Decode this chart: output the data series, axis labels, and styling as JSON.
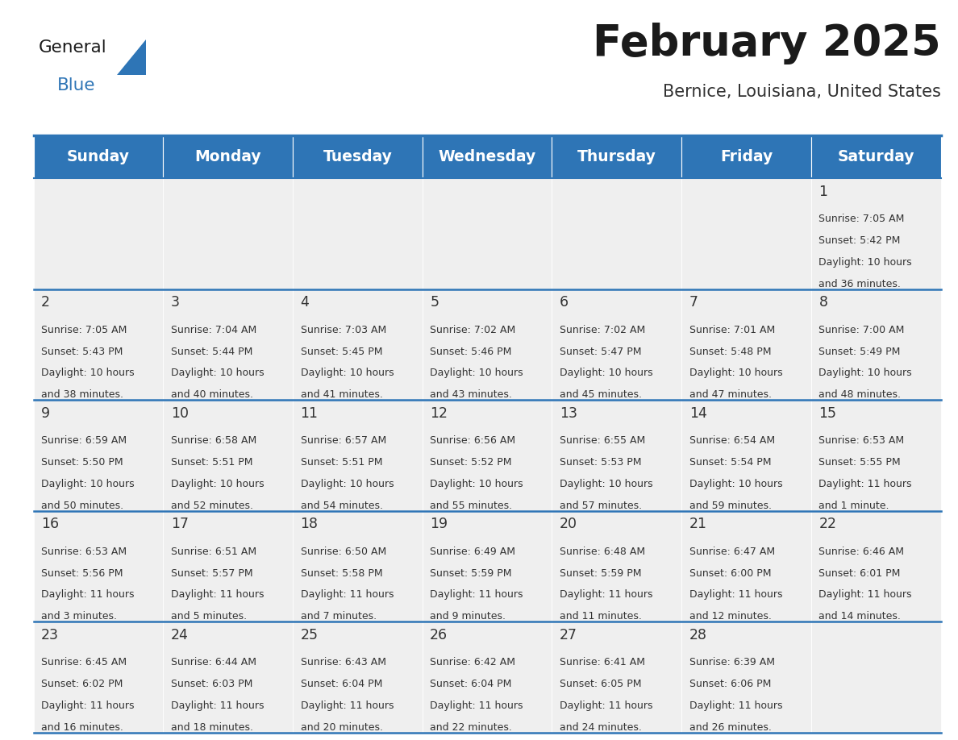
{
  "title": "February 2025",
  "subtitle": "Bernice, Louisiana, United States",
  "days_of_week": [
    "Sunday",
    "Monday",
    "Tuesday",
    "Wednesday",
    "Thursday",
    "Friday",
    "Saturday"
  ],
  "header_bg": "#2E75B6",
  "header_text": "#FFFFFF",
  "cell_bg_light": "#EFEFEF",
  "divider_color": "#2E75B6",
  "text_color": "#333333",
  "day_num_color": "#333333",
  "calendar": [
    [
      null,
      null,
      null,
      null,
      null,
      null,
      {
        "day": 1,
        "sunrise": "7:05 AM",
        "sunset": "5:42 PM",
        "daylight_line1": "Daylight: 10 hours",
        "daylight_line2": "and 36 minutes."
      }
    ],
    [
      {
        "day": 2,
        "sunrise": "7:05 AM",
        "sunset": "5:43 PM",
        "daylight_line1": "Daylight: 10 hours",
        "daylight_line2": "and 38 minutes."
      },
      {
        "day": 3,
        "sunrise": "7:04 AM",
        "sunset": "5:44 PM",
        "daylight_line1": "Daylight: 10 hours",
        "daylight_line2": "and 40 minutes."
      },
      {
        "day": 4,
        "sunrise": "7:03 AM",
        "sunset": "5:45 PM",
        "daylight_line1": "Daylight: 10 hours",
        "daylight_line2": "and 41 minutes."
      },
      {
        "day": 5,
        "sunrise": "7:02 AM",
        "sunset": "5:46 PM",
        "daylight_line1": "Daylight: 10 hours",
        "daylight_line2": "and 43 minutes."
      },
      {
        "day": 6,
        "sunrise": "7:02 AM",
        "sunset": "5:47 PM",
        "daylight_line1": "Daylight: 10 hours",
        "daylight_line2": "and 45 minutes."
      },
      {
        "day": 7,
        "sunrise": "7:01 AM",
        "sunset": "5:48 PM",
        "daylight_line1": "Daylight: 10 hours",
        "daylight_line2": "and 47 minutes."
      },
      {
        "day": 8,
        "sunrise": "7:00 AM",
        "sunset": "5:49 PM",
        "daylight_line1": "Daylight: 10 hours",
        "daylight_line2": "and 48 minutes."
      }
    ],
    [
      {
        "day": 9,
        "sunrise": "6:59 AM",
        "sunset": "5:50 PM",
        "daylight_line1": "Daylight: 10 hours",
        "daylight_line2": "and 50 minutes."
      },
      {
        "day": 10,
        "sunrise": "6:58 AM",
        "sunset": "5:51 PM",
        "daylight_line1": "Daylight: 10 hours",
        "daylight_line2": "and 52 minutes."
      },
      {
        "day": 11,
        "sunrise": "6:57 AM",
        "sunset": "5:51 PM",
        "daylight_line1": "Daylight: 10 hours",
        "daylight_line2": "and 54 minutes."
      },
      {
        "day": 12,
        "sunrise": "6:56 AM",
        "sunset": "5:52 PM",
        "daylight_line1": "Daylight: 10 hours",
        "daylight_line2": "and 55 minutes."
      },
      {
        "day": 13,
        "sunrise": "6:55 AM",
        "sunset": "5:53 PM",
        "daylight_line1": "Daylight: 10 hours",
        "daylight_line2": "and 57 minutes."
      },
      {
        "day": 14,
        "sunrise": "6:54 AM",
        "sunset": "5:54 PM",
        "daylight_line1": "Daylight: 10 hours",
        "daylight_line2": "and 59 minutes."
      },
      {
        "day": 15,
        "sunrise": "6:53 AM",
        "sunset": "5:55 PM",
        "daylight_line1": "Daylight: 11 hours",
        "daylight_line2": "and 1 minute."
      }
    ],
    [
      {
        "day": 16,
        "sunrise": "6:53 AM",
        "sunset": "5:56 PM",
        "daylight_line1": "Daylight: 11 hours",
        "daylight_line2": "and 3 minutes."
      },
      {
        "day": 17,
        "sunrise": "6:51 AM",
        "sunset": "5:57 PM",
        "daylight_line1": "Daylight: 11 hours",
        "daylight_line2": "and 5 minutes."
      },
      {
        "day": 18,
        "sunrise": "6:50 AM",
        "sunset": "5:58 PM",
        "daylight_line1": "Daylight: 11 hours",
        "daylight_line2": "and 7 minutes."
      },
      {
        "day": 19,
        "sunrise": "6:49 AM",
        "sunset": "5:59 PM",
        "daylight_line1": "Daylight: 11 hours",
        "daylight_line2": "and 9 minutes."
      },
      {
        "day": 20,
        "sunrise": "6:48 AM",
        "sunset": "5:59 PM",
        "daylight_line1": "Daylight: 11 hours",
        "daylight_line2": "and 11 minutes."
      },
      {
        "day": 21,
        "sunrise": "6:47 AM",
        "sunset": "6:00 PM",
        "daylight_line1": "Daylight: 11 hours",
        "daylight_line2": "and 12 minutes."
      },
      {
        "day": 22,
        "sunrise": "6:46 AM",
        "sunset": "6:01 PM",
        "daylight_line1": "Daylight: 11 hours",
        "daylight_line2": "and 14 minutes."
      }
    ],
    [
      {
        "day": 23,
        "sunrise": "6:45 AM",
        "sunset": "6:02 PM",
        "daylight_line1": "Daylight: 11 hours",
        "daylight_line2": "and 16 minutes."
      },
      {
        "day": 24,
        "sunrise": "6:44 AM",
        "sunset": "6:03 PM",
        "daylight_line1": "Daylight: 11 hours",
        "daylight_line2": "and 18 minutes."
      },
      {
        "day": 25,
        "sunrise": "6:43 AM",
        "sunset": "6:04 PM",
        "daylight_line1": "Daylight: 11 hours",
        "daylight_line2": "and 20 minutes."
      },
      {
        "day": 26,
        "sunrise": "6:42 AM",
        "sunset": "6:04 PM",
        "daylight_line1": "Daylight: 11 hours",
        "daylight_line2": "and 22 minutes."
      },
      {
        "day": 27,
        "sunrise": "6:41 AM",
        "sunset": "6:05 PM",
        "daylight_line1": "Daylight: 11 hours",
        "daylight_line2": "and 24 minutes."
      },
      {
        "day": 28,
        "sunrise": "6:39 AM",
        "sunset": "6:06 PM",
        "daylight_line1": "Daylight: 11 hours",
        "daylight_line2": "and 26 minutes."
      },
      null
    ]
  ],
  "fig_width": 11.88,
  "fig_height": 9.18
}
